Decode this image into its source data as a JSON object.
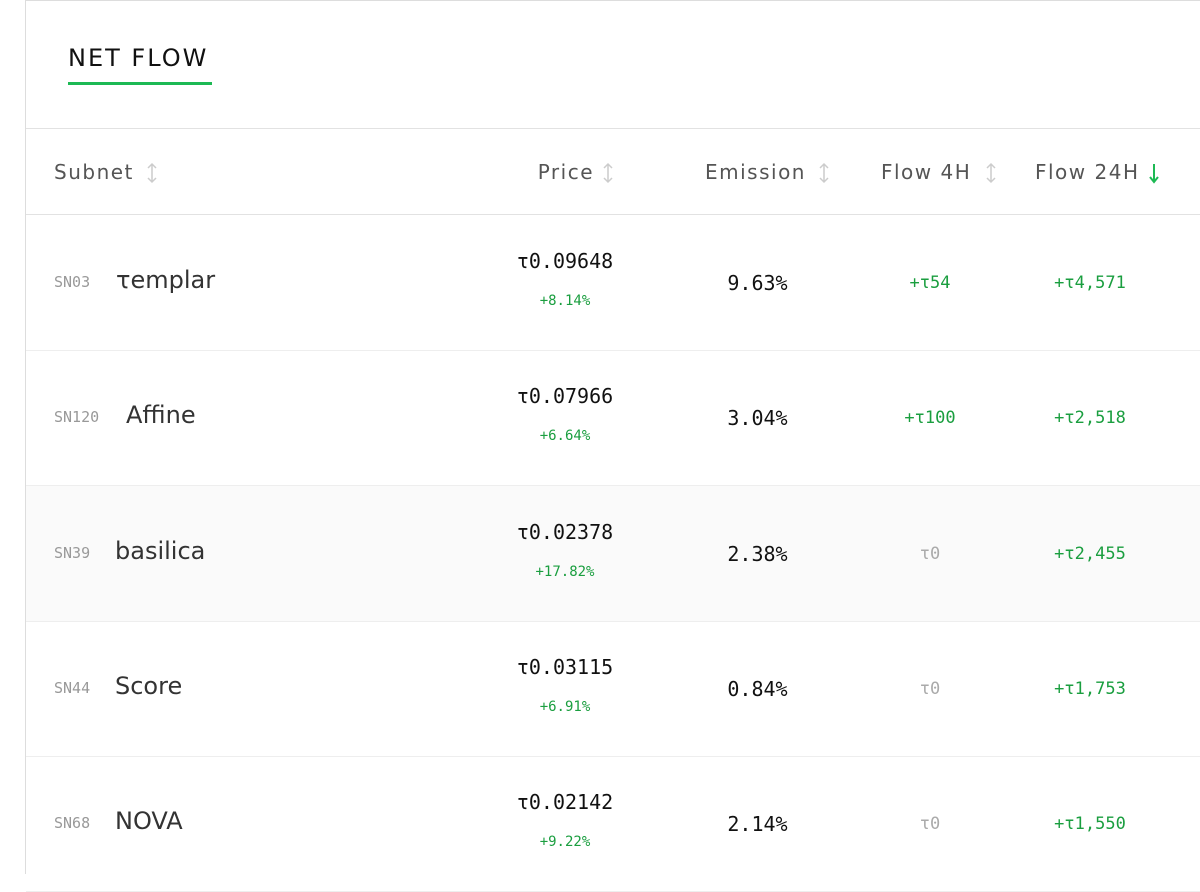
{
  "header": {
    "title": "NET FLOW"
  },
  "table": {
    "columns": [
      "Subnet",
      "Price",
      "Emission",
      "Flow 4H",
      "Flow 24H"
    ],
    "rows": [
      {
        "id": "SN03",
        "name": "τemplar",
        "price": "τ0.09648",
        "change": "+8.14%",
        "emission": "9.63%",
        "flow_4h": "+τ54",
        "flow_24h": "+τ4,571"
      },
      {
        "id": "SN120",
        "name": "Affine",
        "price": "τ0.07966",
        "change": "+6.64%",
        "emission": "3.04%",
        "flow_4h": "+τ100",
        "flow_24h": "+τ2,518"
      },
      {
        "id": "SN39",
        "name": "basilica",
        "price": "τ0.02378",
        "change": "+17.82%",
        "emission": "2.38%",
        "flow_4h": "τ0",
        "flow_24h": "+τ2,455"
      },
      {
        "id": "SN44",
        "name": "Score",
        "price": "τ0.03115",
        "change": "+6.91%",
        "emission": "0.84%",
        "flow_4h": "τ0",
        "flow_24h": "+τ1,753"
      },
      {
        "id": "SN68",
        "name": "NOVA",
        "price": "τ0.02142",
        "change": "+9.22%",
        "emission": "2.14%",
        "flow_4h": "τ0",
        "flow_24h": "+τ1,550"
      }
    ]
  }
}
